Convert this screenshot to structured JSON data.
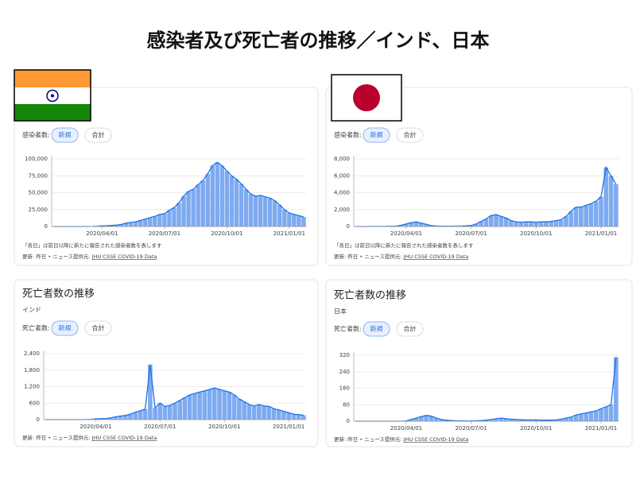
{
  "title": "感染者及び死亡者の推移／インド、日本",
  "chart_data": [
    {
      "type": "bar",
      "metric_label": "感染者数:",
      "toggle": [
        "新規",
        "合計"
      ],
      "note": "「各日」は前日以降に新たに報告された感染者数を表します",
      "source_prefix": "更新: 昨日 • ニュース提供元: ",
      "source_link": "JHU CSSE COVID-19 Data",
      "color": "#7eaaf0",
      "line_color": "#1a73e8",
      "grid": true,
      "categories": [
        null,
        null,
        null,
        null,
        null,
        null,
        null,
        null,
        null,
        null,
        "2020/04/01",
        null,
        null,
        null,
        null,
        null,
        null,
        null,
        null,
        null,
        null,
        null,
        null,
        "2020/07/01",
        null,
        null,
        null,
        null,
        null,
        null,
        null,
        null,
        null,
        null,
        null,
        null,
        "2020/10/01",
        null,
        null,
        null,
        null,
        null,
        null,
        null,
        null,
        null,
        null,
        null,
        null,
        "2021/01/01",
        null,
        null,
        null
      ],
      "values": [
        0,
        0,
        0,
        0,
        0,
        0,
        0,
        20,
        100,
        500,
        1000,
        1200,
        1500,
        2000,
        3000,
        5000,
        6000,
        7000,
        9000,
        11000,
        13000,
        15000,
        18000,
        19000,
        24000,
        28000,
        35000,
        45000,
        52000,
        55000,
        62000,
        68000,
        78000,
        90000,
        95000,
        90000,
        82000,
        75000,
        70000,
        63000,
        55000,
        48000,
        45000,
        46000,
        44000,
        42000,
        38000,
        32000,
        25000,
        20000,
        18000,
        16000,
        14000
      ],
      "ylim": [
        0,
        100000
      ],
      "yticks": [
        0,
        {
          "value": 25000,
          "label": "25,000"
        },
        {
          "value": 50000,
          "label": "50,000"
        },
        {
          "value": 75000,
          "label": "75,000"
        },
        {
          "value": 100000,
          "label": "100,000"
        }
      ]
    },
    {
      "type": "bar",
      "metric_label": "感染者数:",
      "toggle": [
        "新規",
        "合計"
      ],
      "note": "「各日」は前日以降に新たに報告された感染者数を表します",
      "source_prefix": "更新: 昨日 • ニュース提供元: ",
      "source_link": "JHU CSSE COVID-19 Data",
      "color": "#7eaaf0",
      "line_color": "#1a73e8",
      "grid": true,
      "categories": [
        null,
        null,
        null,
        null,
        null,
        null,
        null,
        null,
        null,
        null,
        "2020/04/01",
        null,
        null,
        null,
        null,
        null,
        null,
        null,
        null,
        null,
        null,
        null,
        null,
        "2020/07/01",
        null,
        null,
        null,
        null,
        null,
        null,
        null,
        null,
        null,
        null,
        null,
        null,
        "2020/10/01",
        null,
        null,
        null,
        null,
        null,
        null,
        null,
        null,
        null,
        null,
        null,
        null,
        "2021/01/01",
        null,
        null,
        null
      ],
      "values": [
        0,
        0,
        0,
        5,
        10,
        10,
        20,
        30,
        50,
        150,
        300,
        450,
        550,
        400,
        250,
        100,
        60,
        40,
        30,
        40,
        50,
        60,
        80,
        120,
        300,
        600,
        900,
        1300,
        1400,
        1200,
        1000,
        700,
        550,
        500,
        550,
        550,
        500,
        550,
        550,
        600,
        700,
        800,
        1200,
        1800,
        2300,
        2300,
        2500,
        2700,
        3000,
        3500,
        7000,
        6000,
        5000
      ],
      "ylim": [
        0,
        8000
      ],
      "yticks": [
        0,
        {
          "value": 2000,
          "label": "2,000"
        },
        {
          "value": 4000,
          "label": "4,000"
        },
        {
          "value": 6000,
          "label": "6,000"
        },
        {
          "value": 8000,
          "label": "8,000"
        }
      ]
    },
    {
      "type": "bar",
      "heading": "死亡者数の推移",
      "subtitle": "インド",
      "metric_label": "死亡者数:",
      "toggle": [
        "新規",
        "合計"
      ],
      "source_prefix": "更新: 昨日 • ニュース提供元: ",
      "source_link": "JHU CSSE COVID-19 Data",
      "color": "#7eaaf0",
      "line_color": "#1a73e8",
      "grid": true,
      "categories": [
        null,
        null,
        null,
        null,
        null,
        null,
        null,
        null,
        null,
        null,
        "2020/04/01",
        null,
        null,
        null,
        null,
        null,
        null,
        null,
        null,
        null,
        null,
        null,
        null,
        "2020/07/01",
        null,
        null,
        null,
        null,
        null,
        null,
        null,
        null,
        null,
        null,
        null,
        null,
        "2020/10/01",
        null,
        null,
        null,
        null,
        null,
        null,
        null,
        null,
        null,
        null,
        null,
        null,
        "2021/01/01",
        null,
        null,
        null
      ],
      "values": [
        0,
        0,
        0,
        0,
        0,
        0,
        0,
        0,
        2,
        10,
        30,
        35,
        40,
        60,
        100,
        130,
        150,
        200,
        270,
        320,
        380,
        2000,
        420,
        600,
        480,
        520,
        600,
        700,
        800,
        900,
        950,
        1000,
        1050,
        1100,
        1150,
        1100,
        1050,
        1000,
        900,
        750,
        650,
        550,
        500,
        550,
        500,
        480,
        400,
        350,
        300,
        250,
        200,
        180,
        160
      ],
      "ylim": [
        0,
        2400
      ],
      "yticks": [
        0,
        600,
        {
          "value": 1200,
          "label": "1,200"
        },
        {
          "value": 1800,
          "label": "1,800"
        },
        {
          "value": 2400,
          "label": "2,400"
        }
      ]
    },
    {
      "type": "bar",
      "heading": "死亡者数の推移",
      "subtitle": "日本",
      "metric_label": "死亡者数:",
      "toggle": [
        "新規",
        "合計"
      ],
      "source_prefix": "更新: 昨日 • ニュース提供元: ",
      "source_link": "JHU CSSE COVID-19 Data",
      "color": "#7eaaf0",
      "line_color": "#1a73e8",
      "grid": true,
      "categories": [
        null,
        null,
        null,
        null,
        null,
        null,
        null,
        null,
        null,
        null,
        "2020/04/01",
        null,
        null,
        null,
        null,
        null,
        null,
        null,
        null,
        null,
        null,
        null,
        null,
        "2020/07/01",
        null,
        null,
        null,
        null,
        null,
        null,
        null,
        null,
        null,
        null,
        null,
        null,
        "2020/10/01",
        null,
        null,
        null,
        null,
        null,
        null,
        null,
        null,
        null,
        null,
        null,
        null,
        "2021/01/01",
        null,
        null,
        null
      ],
      "values": [
        0,
        0,
        0,
        0,
        0,
        0,
        0,
        0,
        0,
        0,
        2,
        8,
        15,
        22,
        28,
        25,
        15,
        8,
        5,
        3,
        2,
        2,
        1,
        1,
        2,
        3,
        5,
        8,
        12,
        15,
        12,
        10,
        8,
        7,
        6,
        6,
        6,
        5,
        5,
        5,
        6,
        10,
        15,
        20,
        30,
        35,
        40,
        45,
        50,
        60,
        70,
        80,
        310
      ],
      "ylim": [
        0,
        320
      ],
      "yticks": [
        0,
        80,
        160,
        240,
        320
      ]
    }
  ]
}
